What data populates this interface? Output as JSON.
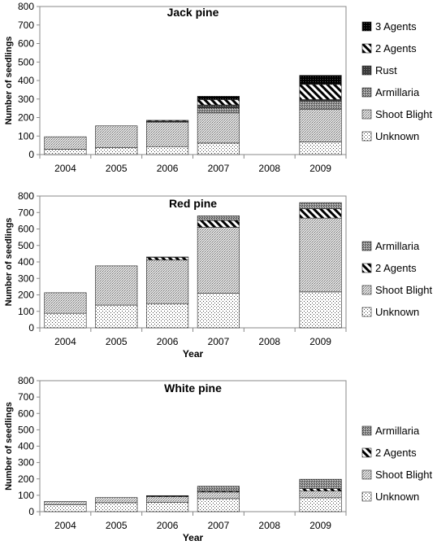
{
  "chart_data": [
    {
      "type": "bar",
      "stacked": true,
      "title": "Jack pine",
      "xlabel": "",
      "ylabel": "Number of seedlings",
      "ylim": [
        0,
        800
      ],
      "yticks": [
        0,
        100,
        200,
        300,
        400,
        500,
        600,
        700,
        800
      ],
      "grid": false,
      "legend": "right",
      "categories": [
        "2004",
        "2005",
        "2006",
        "2007",
        "2008",
        "2009"
      ],
      "series": [
        {
          "name": "Unknown",
          "values": [
            28,
            38,
            43,
            62,
            0,
            68
          ]
        },
        {
          "name": "Shoot Blight",
          "values": [
            68,
            117,
            132,
            163,
            0,
            177
          ]
        },
        {
          "name": "Armillaria",
          "values": [
            0,
            0,
            3,
            28,
            0,
            42
          ]
        },
        {
          "name": "Rust",
          "values": [
            0,
            0,
            3,
            15,
            0,
            10
          ]
        },
        {
          "name": "2 Agents",
          "values": [
            0,
            0,
            4,
            29,
            0,
            82
          ]
        },
        {
          "name": "3 Agents",
          "values": [
            0,
            0,
            0,
            18,
            0,
            49
          ]
        }
      ]
    },
    {
      "type": "bar",
      "stacked": true,
      "title": "Red pine",
      "xlabel": "Year",
      "ylabel": "Number of seedlings",
      "ylim": [
        0,
        800
      ],
      "yticks": [
        0,
        100,
        200,
        300,
        400,
        500,
        600,
        700,
        800
      ],
      "grid": false,
      "legend": "right",
      "categories": [
        "2004",
        "2005",
        "2006",
        "2007",
        "2008",
        "2009"
      ],
      "series": [
        {
          "name": "Unknown",
          "values": [
            88,
            138,
            147,
            210,
            0,
            218
          ]
        },
        {
          "name": "Shoot Blight",
          "values": [
            125,
            238,
            265,
            400,
            0,
            448
          ]
        },
        {
          "name": "2 Agents",
          "values": [
            0,
            0,
            16,
            42,
            0,
            57
          ]
        },
        {
          "name": "Armillaria",
          "values": [
            0,
            0,
            2,
            28,
            0,
            37
          ]
        }
      ]
    },
    {
      "type": "bar",
      "stacked": true,
      "title": "White pine",
      "xlabel": "Year",
      "ylabel": "Number of seedlings",
      "ylim": [
        0,
        800
      ],
      "yticks": [
        0,
        100,
        200,
        300,
        400,
        500,
        600,
        700,
        800
      ],
      "grid": false,
      "legend": "right",
      "categories": [
        "2004",
        "2005",
        "2006",
        "2007",
        "2008",
        "2009"
      ],
      "series": [
        {
          "name": "Unknown",
          "values": [
            42,
            55,
            58,
            80,
            0,
            85
          ]
        },
        {
          "name": "Shoot Blight",
          "values": [
            21,
            31,
            33,
            40,
            0,
            41
          ]
        },
        {
          "name": "2 Agents",
          "values": [
            0,
            0,
            4,
            5,
            0,
            15
          ]
        },
        {
          "name": "Armillaria",
          "values": [
            0,
            0,
            3,
            30,
            0,
            57
          ]
        }
      ]
    }
  ]
}
